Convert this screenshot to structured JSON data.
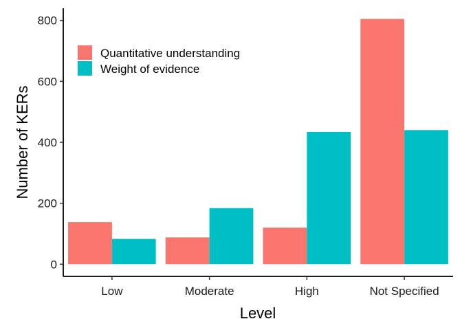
{
  "chart_data": {
    "type": "bar",
    "categories": [
      "Low",
      "Moderate",
      "High",
      "Not Specified"
    ],
    "series": [
      {
        "name": "Quantitative understanding",
        "color": "#F8766D",
        "values": [
          138,
          88,
          120,
          805
        ]
      },
      {
        "name": "Weight of evidence",
        "color": "#00BFC4",
        "values": [
          83,
          184,
          434,
          440
        ]
      }
    ],
    "xlabel": "Level",
    "ylabel": "Number of KERs",
    "ylim": [
      -40,
      840
    ],
    "yticks": [
      0,
      200,
      400,
      600,
      800
    ],
    "grid": false,
    "legend_position": "top-left"
  }
}
